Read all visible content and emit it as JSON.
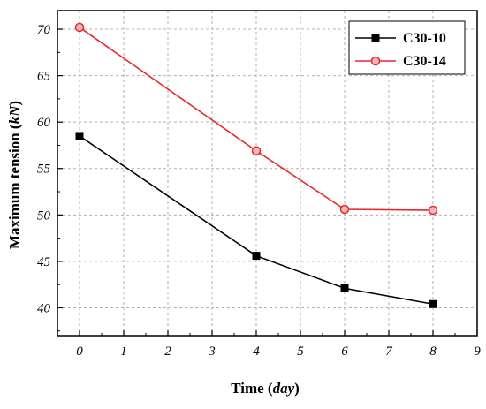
{
  "chart_data": {
    "type": "line",
    "xlabel_main": "Time (",
    "xlabel_unit": "day",
    "xlabel_close": ")",
    "ylabel_main": "Maximum tension (",
    "ylabel_unit": "kN",
    "ylabel_close": ")",
    "xlim": [
      -0.5,
      9
    ],
    "ylim": [
      37,
      72
    ],
    "x_ticks": [
      0,
      1,
      2,
      3,
      4,
      5,
      6,
      7,
      8,
      9
    ],
    "y_ticks": [
      40,
      45,
      50,
      55,
      60,
      65,
      70
    ],
    "grid": true,
    "legend_position": "top-right",
    "series": [
      {
        "name": "C30-10",
        "color": "#000000",
        "marker": "square",
        "x": [
          0,
          4,
          6,
          8
        ],
        "y": [
          58.5,
          45.6,
          42.1,
          40.4
        ]
      },
      {
        "name": "C30-14",
        "color": "#e8262b",
        "marker": "circle",
        "x": [
          0,
          4,
          6,
          8
        ],
        "y": [
          70.2,
          56.9,
          50.6,
          50.5
        ]
      }
    ]
  }
}
